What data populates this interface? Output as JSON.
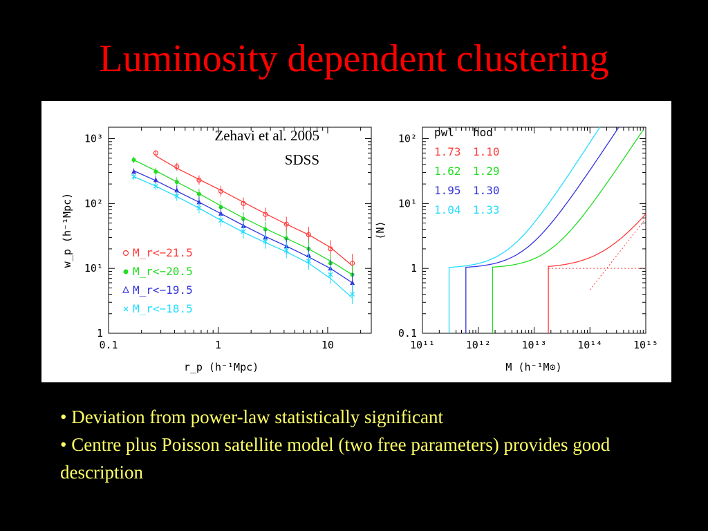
{
  "slide": {
    "title": "Luminosity dependent clustering",
    "bullets": [
      "• Deviation from power-law statistically significant",
      "• Centre plus Poisson satellite model (two free parameters) provides good description"
    ]
  },
  "colors": {
    "background": "#000000",
    "title": "#ff0000",
    "bullets": "#ffff66",
    "red": "#ff3b3b",
    "green": "#22dd22",
    "blue": "#3333dd",
    "cyan": "#22ddff"
  },
  "chart_data": [
    {
      "type": "scatter",
      "annotation": [
        "Zehavi et al. 2005",
        "SDSS"
      ],
      "xlabel": "r_p (h⁻¹Mpc)",
      "ylabel": "w_p (h⁻¹Mpc)",
      "xscale": "log",
      "yscale": "log",
      "xlim": [
        0.1,
        25
      ],
      "ylim": [
        1,
        1500
      ],
      "x_ticks": [
        0.1,
        1,
        10
      ],
      "x_tick_labels": [
        "0.1",
        "1",
        "10"
      ],
      "y_ticks": [
        1,
        10,
        100,
        1000
      ],
      "y_tick_labels": [
        "1",
        "10¹",
        "10²",
        "10³"
      ],
      "legend_position": "bottom-left",
      "series": [
        {
          "name": "M_r<−21.5",
          "color": "red",
          "marker": "circle",
          "x": [
            0.27,
            0.42,
            0.67,
            1.06,
            1.7,
            2.7,
            4.2,
            6.7,
            10.6,
            16.8
          ],
          "y": [
            600,
            370,
            230,
            155,
            100,
            68,
            48,
            33,
            20,
            12
          ],
          "fit": [
            [
              0.27,
              540
            ],
            [
              0.42,
              350
            ],
            [
              0.67,
              235
            ],
            [
              1.06,
              160
            ],
            [
              1.7,
              105
            ],
            [
              2.7,
              70
            ],
            [
              4.2,
              48
            ],
            [
              6.7,
              33
            ],
            [
              10.6,
              21
            ],
            [
              16.8,
              11
            ]
          ]
        },
        {
          "name": "M_r<−20.5",
          "color": "green",
          "marker": "filled-circle",
          "x": [
            0.17,
            0.27,
            0.42,
            0.67,
            1.06,
            1.7,
            2.7,
            4.2,
            6.7,
            10.6,
            16.8
          ],
          "y": [
            470,
            310,
            215,
            140,
            88,
            58,
            40,
            29,
            20,
            12,
            8
          ],
          "fit": [
            [
              0.17,
              470
            ],
            [
              0.27,
              320
            ],
            [
              0.42,
              215
            ],
            [
              0.67,
              142
            ],
            [
              1.06,
              92
            ],
            [
              1.7,
              60
            ],
            [
              2.7,
              41
            ],
            [
              4.2,
              29
            ],
            [
              6.7,
              20
            ],
            [
              10.6,
              13
            ],
            [
              16.8,
              8
            ]
          ]
        },
        {
          "name": "M_r<−19.5",
          "color": "blue",
          "marker": "triangle",
          "x": [
            0.17,
            0.27,
            0.42,
            0.67,
            1.06,
            1.7,
            2.7,
            4.2,
            6.7,
            10.6,
            16.8
          ],
          "y": [
            310,
            230,
            160,
            105,
            70,
            45,
            30,
            22,
            16,
            10,
            6
          ],
          "fit": [
            [
              0.17,
              320
            ],
            [
              0.27,
              225
            ],
            [
              0.42,
              155
            ],
            [
              0.67,
              105
            ],
            [
              1.06,
              70
            ],
            [
              1.7,
              46
            ],
            [
              2.7,
              31
            ],
            [
              4.2,
              22
            ],
            [
              6.7,
              15
            ],
            [
              10.6,
              10
            ],
            [
              16.8,
              6
            ]
          ]
        },
        {
          "name": "M_r<−18.5",
          "color": "cyan",
          "marker": "cross",
          "x": [
            0.17,
            0.27,
            0.42,
            0.67,
            1.06,
            1.7,
            2.7,
            4.2,
            6.7,
            10.6,
            16.8
          ],
          "y": [
            260,
            185,
            130,
            85,
            55,
            37,
            26,
            19,
            13,
            8,
            4
          ],
          "fit": [
            [
              0.17,
              260
            ],
            [
              0.27,
              185
            ],
            [
              0.42,
              128
            ],
            [
              0.67,
              85
            ],
            [
              1.06,
              55
            ],
            [
              1.7,
              36
            ],
            [
              2.7,
              25
            ],
            [
              4.2,
              18
            ],
            [
              6.7,
              12
            ],
            [
              10.6,
              7
            ],
            [
              16.8,
              3.5
            ]
          ]
        }
      ]
    },
    {
      "type": "line",
      "xlabel": "M (h⁻¹M⊙)",
      "ylabel": "⟨N⟩",
      "xscale": "log",
      "yscale": "log",
      "xlim": [
        100000000000.0,
        1000000000000000.0
      ],
      "ylim": [
        0.1,
        150
      ],
      "x_ticks": [
        100000000000.0,
        1000000000000.0,
        10000000000000.0,
        100000000000000.0,
        1000000000000000.0
      ],
      "x_tick_labels": [
        "10¹¹",
        "10¹²",
        "10¹³",
        "10¹⁴",
        "10¹⁵"
      ],
      "y_ticks": [
        0.1,
        1,
        10,
        100
      ],
      "y_tick_labels": [
        "0.1",
        "1",
        "10¹",
        "10²"
      ],
      "legend_position": "top-left",
      "legend_header": [
        "pwl",
        "hod"
      ],
      "series": [
        {
          "color": "red",
          "pwl": "1.73",
          "hod": "1.10",
          "mmin": 18000000000000.0,
          "m1": 200000000000000.0,
          "alpha": 1.1
        },
        {
          "color": "green",
          "pwl": "1.62",
          "hod": "1.29",
          "mmin": 1800000000000.0,
          "m1": 20000000000000.0,
          "alpha": 1.29
        },
        {
          "color": "blue",
          "pwl": "1.95",
          "hod": "1.30",
          "mmin": 600000000000.0,
          "m1": 7000000000000.0,
          "alpha": 1.3
        },
        {
          "color": "cyan",
          "pwl": "1.04",
          "hod": "1.33",
          "mmin": 300000000000.0,
          "m1": 3500000000000.0,
          "alpha": 1.33
        }
      ]
    }
  ]
}
